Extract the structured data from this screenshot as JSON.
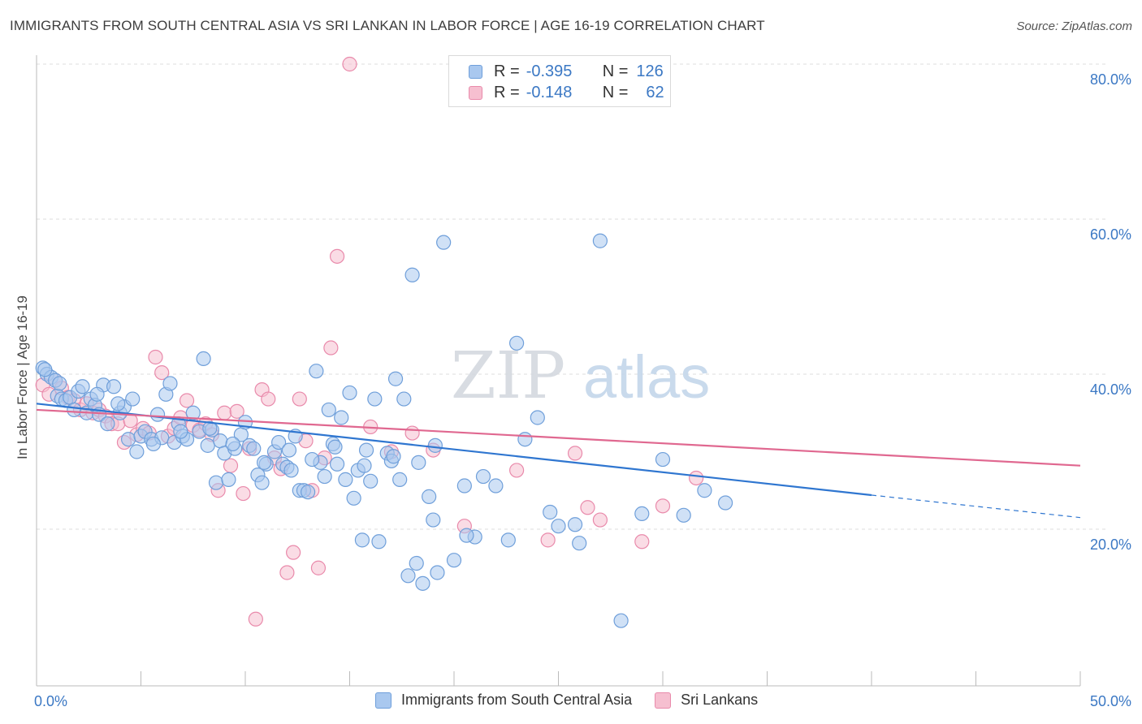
{
  "title": "IMMIGRANTS FROM SOUTH CENTRAL ASIA VS SRI LANKAN IN LABOR FORCE | AGE 16-19 CORRELATION CHART",
  "source": "Source: ZipAtlas.com",
  "watermark": {
    "zip": "ZIP",
    "atlas": "atlas"
  },
  "legend": {
    "rows": [
      {
        "r_label": "R =",
        "r_value": "-0.395",
        "n_label": "N =",
        "n_value": "126"
      },
      {
        "r_label": "R =",
        "r_value": "-0.148",
        "n_label": "N =",
        "n_value": "62"
      }
    ]
  },
  "bottom_legend": {
    "series1": "Immigrants from South Central Asia",
    "series2": "Sri Lankans"
  },
  "colors": {
    "blue_fill": "#a9c8ef",
    "blue_stroke": "#6f9fda",
    "blue_line": "#2f76d0",
    "pink_fill": "#f6bfd0",
    "pink_stroke": "#e98aab",
    "pink_line": "#e06890",
    "axis_text": "#3b78c4",
    "grid": "#dddddd"
  },
  "chart_data": {
    "type": "scatter",
    "title": "IMMIGRANTS FROM SOUTH CENTRAL ASIA VS SRI LANKAN IN LABOR FORCE | AGE 16-19 CORRELATION CHART",
    "xlabel": "",
    "ylabel": "In Labor Force | Age 16-19",
    "xlim": [
      0,
      50
    ],
    "ylim": [
      0,
      82
    ],
    "x_tick_labels": [
      "0.0%",
      "50.0%"
    ],
    "y_ticks": [
      20,
      40,
      60,
      80
    ],
    "y_tick_labels": [
      "20.0%",
      "40.0%",
      "60.0%",
      "80.0%"
    ],
    "grid": true,
    "series": [
      {
        "name": "Immigrants from South Central Asia",
        "trend": {
          "x0": 0,
          "y0": 36.2,
          "x1": 40,
          "y1": 24.4,
          "dash_to_x": 50,
          "dash_to_y": 21.5
        },
        "points": [
          [
            0.3,
            40.8
          ],
          [
            0.5,
            40.0
          ],
          [
            0.7,
            39.6
          ],
          [
            0.9,
            39.2
          ],
          [
            1.0,
            37.2
          ],
          [
            1.2,
            36.8
          ],
          [
            1.4,
            36.6
          ],
          [
            1.6,
            37.0
          ],
          [
            1.8,
            35.4
          ],
          [
            2.0,
            37.8
          ],
          [
            2.2,
            38.4
          ],
          [
            2.4,
            35.0
          ],
          [
            2.6,
            36.8
          ],
          [
            2.8,
            36.0
          ],
          [
            3.0,
            34.8
          ],
          [
            3.2,
            38.6
          ],
          [
            3.4,
            33.6
          ],
          [
            3.7,
            38.4
          ],
          [
            4.0,
            35.0
          ],
          [
            4.2,
            35.8
          ],
          [
            4.4,
            31.6
          ],
          [
            4.6,
            36.8
          ],
          [
            4.8,
            30.0
          ],
          [
            5.0,
            32.0
          ],
          [
            5.2,
            32.6
          ],
          [
            5.5,
            31.6
          ],
          [
            5.8,
            34.8
          ],
          [
            6.0,
            31.8
          ],
          [
            6.2,
            37.4
          ],
          [
            6.4,
            38.8
          ],
          [
            6.6,
            31.2
          ],
          [
            6.8,
            33.6
          ],
          [
            7.0,
            32.0
          ],
          [
            7.2,
            31.6
          ],
          [
            7.5,
            35.0
          ],
          [
            7.8,
            32.6
          ],
          [
            8.0,
            42.0
          ],
          [
            8.2,
            30.8
          ],
          [
            8.4,
            32.8
          ],
          [
            8.6,
            26.0
          ],
          [
            8.8,
            31.4
          ],
          [
            9.0,
            29.8
          ],
          [
            9.2,
            26.4
          ],
          [
            9.5,
            30.4
          ],
          [
            9.8,
            32.2
          ],
          [
            10.0,
            33.8
          ],
          [
            10.2,
            30.8
          ],
          [
            10.4,
            30.4
          ],
          [
            10.6,
            27.0
          ],
          [
            10.8,
            26.0
          ],
          [
            11.0,
            28.4
          ],
          [
            11.4,
            30.0
          ],
          [
            11.6,
            31.2
          ],
          [
            11.8,
            28.4
          ],
          [
            12.0,
            28.0
          ],
          [
            12.2,
            27.6
          ],
          [
            12.4,
            32.0
          ],
          [
            12.6,
            25.0
          ],
          [
            12.8,
            25.0
          ],
          [
            13.0,
            24.8
          ],
          [
            13.4,
            40.4
          ],
          [
            13.6,
            28.6
          ],
          [
            13.8,
            26.8
          ],
          [
            14.0,
            35.4
          ],
          [
            14.2,
            31.0
          ],
          [
            14.4,
            28.4
          ],
          [
            14.6,
            34.4
          ],
          [
            14.8,
            26.4
          ],
          [
            15.0,
            37.6
          ],
          [
            15.2,
            24.0
          ],
          [
            15.4,
            27.6
          ],
          [
            15.6,
            18.6
          ],
          [
            15.8,
            30.2
          ],
          [
            16.0,
            26.2
          ],
          [
            16.2,
            36.8
          ],
          [
            16.4,
            18.4
          ],
          [
            16.8,
            29.8
          ],
          [
            17.0,
            28.8
          ],
          [
            17.2,
            39.4
          ],
          [
            17.4,
            26.4
          ],
          [
            17.6,
            36.8
          ],
          [
            17.8,
            14.0
          ],
          [
            18.0,
            52.8
          ],
          [
            18.2,
            15.6
          ],
          [
            18.5,
            13.0
          ],
          [
            18.8,
            24.2
          ],
          [
            19.0,
            21.2
          ],
          [
            19.2,
            14.4
          ],
          [
            19.5,
            57.0
          ],
          [
            20.0,
            16.0
          ],
          [
            20.5,
            25.6
          ],
          [
            21.0,
            19.0
          ],
          [
            22.0,
            25.6
          ],
          [
            23.0,
            44.0
          ],
          [
            24.0,
            34.4
          ],
          [
            25.0,
            20.4
          ],
          [
            26.0,
            18.2
          ],
          [
            27.0,
            57.2
          ],
          [
            28.0,
            8.2
          ],
          [
            29.0,
            22.0
          ],
          [
            30.0,
            29.0
          ],
          [
            31.0,
            21.8
          ],
          [
            32.0,
            25.0
          ],
          [
            33.0,
            23.4
          ],
          [
            0.4,
            40.6
          ],
          [
            1.1,
            38.8
          ],
          [
            2.9,
            37.4
          ],
          [
            3.9,
            36.2
          ],
          [
            5.6,
            31.0
          ],
          [
            6.9,
            32.6
          ],
          [
            8.3,
            33.0
          ],
          [
            9.4,
            31.0
          ],
          [
            10.9,
            28.6
          ],
          [
            12.1,
            30.2
          ],
          [
            13.2,
            29.0
          ],
          [
            14.3,
            30.6
          ],
          [
            15.7,
            28.2
          ],
          [
            17.1,
            29.4
          ],
          [
            18.3,
            28.6
          ],
          [
            19.1,
            30.8
          ],
          [
            20.6,
            19.2
          ],
          [
            21.4,
            26.8
          ],
          [
            22.6,
            18.6
          ],
          [
            23.4,
            31.6
          ],
          [
            24.6,
            22.2
          ],
          [
            25.8,
            20.6
          ]
        ]
      },
      {
        "name": "Sri Lankans",
        "trend": {
          "x0": 0,
          "y0": 35.4,
          "x1": 50,
          "y1": 28.2
        },
        "points": [
          [
            0.3,
            38.6
          ],
          [
            0.6,
            37.4
          ],
          [
            0.9,
            39.2
          ],
          [
            1.2,
            38.2
          ],
          [
            1.5,
            37.0
          ],
          [
            1.8,
            36.6
          ],
          [
            2.1,
            35.4
          ],
          [
            2.4,
            36.2
          ],
          [
            2.7,
            35.0
          ],
          [
            3.0,
            35.4
          ],
          [
            3.3,
            34.6
          ],
          [
            3.6,
            33.6
          ],
          [
            3.9,
            33.6
          ],
          [
            4.2,
            31.2
          ],
          [
            4.5,
            34.0
          ],
          [
            4.8,
            32.2
          ],
          [
            5.1,
            33.0
          ],
          [
            5.4,
            32.4
          ],
          [
            5.7,
            42.2
          ],
          [
            6.0,
            40.2
          ],
          [
            6.3,
            32.0
          ],
          [
            6.6,
            33.0
          ],
          [
            6.9,
            34.4
          ],
          [
            7.2,
            36.6
          ],
          [
            7.5,
            33.4
          ],
          [
            7.8,
            32.8
          ],
          [
            8.1,
            33.6
          ],
          [
            8.4,
            32.2
          ],
          [
            8.7,
            25.0
          ],
          [
            9.0,
            35.0
          ],
          [
            9.3,
            28.2
          ],
          [
            9.6,
            35.2
          ],
          [
            9.9,
            24.6
          ],
          [
            10.2,
            30.4
          ],
          [
            10.5,
            8.4
          ],
          [
            10.8,
            38.0
          ],
          [
            11.1,
            36.8
          ],
          [
            11.4,
            29.2
          ],
          [
            11.7,
            27.8
          ],
          [
            12.0,
            14.4
          ],
          [
            12.3,
            17.0
          ],
          [
            12.6,
            36.8
          ],
          [
            12.9,
            31.4
          ],
          [
            13.2,
            25.0
          ],
          [
            13.5,
            15.0
          ],
          [
            13.8,
            29.2
          ],
          [
            14.1,
            43.4
          ],
          [
            14.4,
            55.2
          ],
          [
            15.0,
            80.0
          ],
          [
            16.0,
            33.2
          ],
          [
            17.0,
            30.0
          ],
          [
            18.0,
            32.4
          ],
          [
            19.0,
            30.2
          ],
          [
            20.5,
            20.4
          ],
          [
            23.0,
            27.6
          ],
          [
            24.5,
            18.6
          ],
          [
            25.8,
            29.8
          ],
          [
            26.4,
            22.8
          ],
          [
            27.0,
            21.2
          ],
          [
            29.0,
            18.4
          ],
          [
            30.0,
            23.0
          ],
          [
            31.6,
            26.6
          ]
        ]
      }
    ]
  }
}
